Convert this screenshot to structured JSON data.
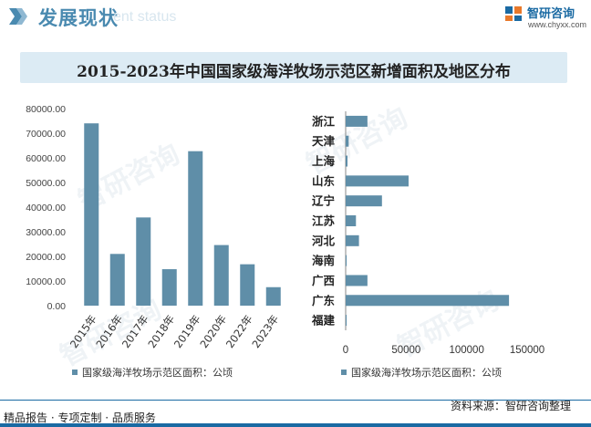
{
  "header": {
    "title": "发展现状",
    "subtitle": "ent status",
    "brand_name": "智研咨询",
    "brand_url": "www.chyxx.com"
  },
  "chart_title": "2015-2023年中国国家级海洋牧场示范区新增面积及地区分布",
  "watermark_text": "智研咨询",
  "chart_data": [
    {
      "type": "bar",
      "title": "",
      "categories": [
        "2015年",
        "2016年",
        "2017年",
        "2018年",
        "2019年",
        "2020年",
        "2022年",
        "2023年"
      ],
      "series": [
        {
          "name": "国家级海洋牧场示范区面积：公顷",
          "values": [
            74000,
            21000,
            35800,
            14800,
            62700,
            24600,
            16800,
            7500
          ]
        }
      ],
      "ylim": [
        0,
        80000
      ],
      "yticks": [
        0,
        10000,
        20000,
        30000,
        40000,
        50000,
        60000,
        70000,
        80000
      ],
      "ytick_labels": [
        "0.00",
        "10000.00",
        "20000.00",
        "30000.00",
        "40000.00",
        "50000.00",
        "60000.00",
        "70000.00",
        "80000.00"
      ],
      "legend": "bottom",
      "color": "#5f8ea8"
    },
    {
      "type": "bar",
      "orientation": "horizontal",
      "title": "",
      "categories": [
        "浙江",
        "天津",
        "上海",
        "山东",
        "辽宁",
        "江苏",
        "河北",
        "海南",
        "广西",
        "广东",
        "福建"
      ],
      "series": [
        {
          "name": "国家级海洋牧场示范区面积：公顷",
          "values": [
            18000,
            2500,
            1500,
            52000,
            30000,
            8500,
            11000,
            800,
            18000,
            135000,
            800
          ]
        }
      ],
      "xlim": [
        0,
        150000
      ],
      "xticks": [
        0,
        50000,
        100000,
        150000
      ],
      "xtick_labels": [
        "0",
        "50000",
        "100000",
        "150000"
      ],
      "legend": "bottom",
      "color": "#5f8ea8"
    }
  ],
  "footer": {
    "left": "精品报告 · 专项定制 · 品质服务",
    "right": "资料来源：智研咨询整理"
  }
}
